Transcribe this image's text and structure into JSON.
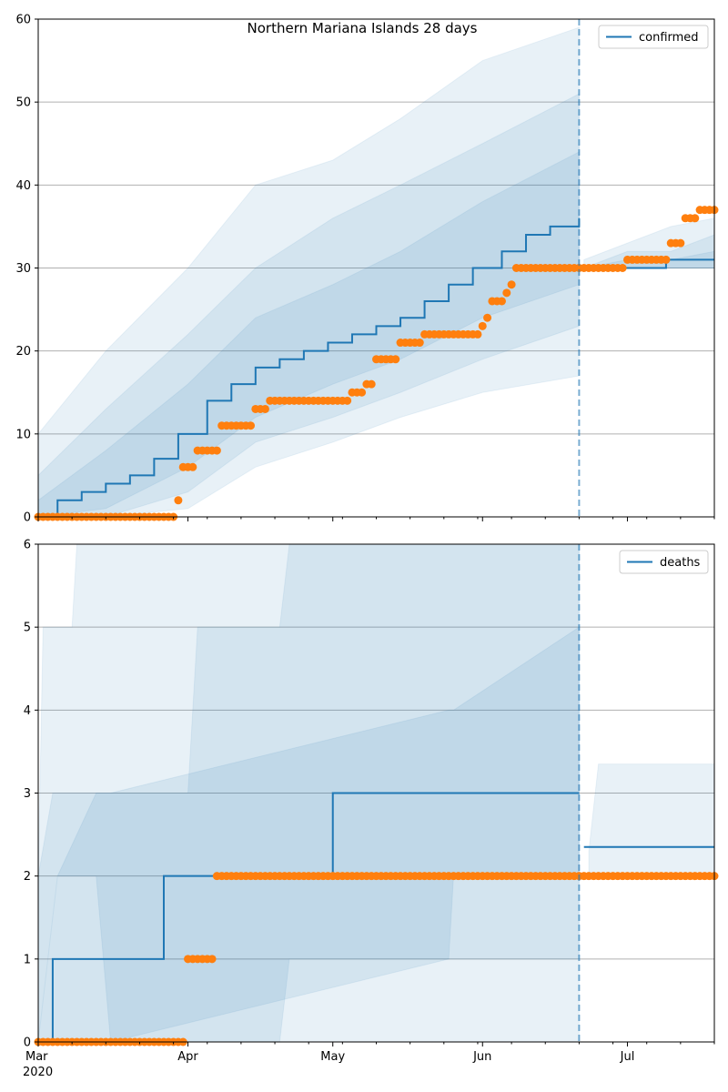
{
  "chart_data": [
    {
      "type": "line",
      "title": "Northern Mariana Islands 28 days",
      "xlabel": "",
      "ylabel": "",
      "ylim": [
        0,
        60
      ],
      "yticks": [
        0,
        10,
        20,
        30,
        40,
        50,
        60
      ],
      "xlim": [
        "2020-03-01",
        "2020-07-19"
      ],
      "xticks": [
        {
          "date": "2020-03-01",
          "label": "Mar",
          "sublabel": "2020"
        },
        {
          "date": "2020-04-01",
          "label": "Apr",
          "sublabel": ""
        },
        {
          "date": "2020-05-01",
          "label": "May",
          "sublabel": ""
        },
        {
          "date": "2020-06-01",
          "label": "Jun",
          "sublabel": ""
        },
        {
          "date": "2020-07-01",
          "label": "Jul",
          "sublabel": ""
        }
      ],
      "grid": "horizontal",
      "legend": {
        "position": "top-right",
        "entries": [
          "confirmed"
        ]
      },
      "forecast_start": "2020-06-21",
      "series_fit": {
        "name": "confirmed",
        "color": "#1f77b4",
        "x": [
          "2020-03-01",
          "2020-03-05",
          "2020-03-10",
          "2020-03-15",
          "2020-03-20",
          "2020-03-25",
          "2020-03-30",
          "2020-04-05",
          "2020-04-10",
          "2020-04-15",
          "2020-04-20",
          "2020-04-25",
          "2020-04-30",
          "2020-05-05",
          "2020-05-10",
          "2020-05-15",
          "2020-05-20",
          "2020-05-25",
          "2020-05-30",
          "2020-06-05",
          "2020-06-10",
          "2020-06-15",
          "2020-06-21"
        ],
        "y": [
          0,
          2,
          3,
          4,
          5,
          7,
          10,
          14,
          16,
          18,
          19,
          20,
          21,
          22,
          23,
          24,
          26,
          28,
          30,
          32,
          34,
          35,
          36
        ]
      },
      "series_forecast": {
        "x": [
          "2020-06-22",
          "2020-06-30",
          "2020-07-01",
          "2020-07-08",
          "2020-07-09",
          "2020-07-19"
        ],
        "y": [
          30,
          30,
          30,
          30,
          31,
          31
        ]
      },
      "bands_fit": [
        {
          "x": [
            "2020-03-01",
            "2020-03-15",
            "2020-04-01",
            "2020-04-15",
            "2020-05-01",
            "2020-05-15",
            "2020-06-01",
            "2020-06-21"
          ],
          "lower": [
            0,
            0,
            1,
            6,
            9,
            12,
            15,
            17
          ],
          "upper": [
            10,
            20,
            30,
            40,
            43,
            48,
            55,
            59
          ]
        },
        {
          "x": [
            "2020-03-01",
            "2020-03-15",
            "2020-04-01",
            "2020-04-15",
            "2020-05-01",
            "2020-05-15",
            "2020-06-01",
            "2020-06-21"
          ],
          "lower": [
            0,
            0,
            3,
            9,
            12,
            15,
            19,
            23
          ],
          "upper": [
            5,
            13,
            22,
            30,
            36,
            40,
            45,
            51
          ]
        },
        {
          "x": [
            "2020-03-01",
            "2020-03-15",
            "2020-04-01",
            "2020-04-15",
            "2020-05-01",
            "2020-05-15",
            "2020-06-01",
            "2020-06-21"
          ],
          "lower": [
            0,
            1,
            6,
            12,
            16,
            19,
            24,
            28
          ],
          "upper": [
            2,
            8,
            16,
            24,
            28,
            32,
            38,
            44
          ]
        }
      ],
      "bands_forecast": [
        {
          "x": [
            "2020-06-22",
            "2020-07-01",
            "2020-07-10",
            "2020-07-19"
          ],
          "lower": [
            30,
            30,
            30,
            30
          ],
          "upper": [
            31,
            33,
            35,
            36
          ]
        },
        {
          "x": [
            "2020-06-22",
            "2020-07-01",
            "2020-07-10",
            "2020-07-19"
          ],
          "lower": [
            30,
            30,
            30,
            30
          ],
          "upper": [
            30,
            32,
            32,
            34
          ]
        },
        {
          "x": [
            "2020-06-22",
            "2020-07-01",
            "2020-07-10",
            "2020-07-19"
          ],
          "lower": [
            30,
            30,
            30,
            30
          ],
          "upper": [
            30,
            31,
            31,
            32
          ]
        }
      ],
      "observed": {
        "color": "#ff7f0e",
        "segments": [
          {
            "from": "2020-03-01",
            "to": "2020-03-29",
            "value": 0
          },
          {
            "from": "2020-03-30",
            "to": "2020-03-30",
            "value": 2
          },
          {
            "from": "2020-03-31",
            "to": "2020-04-02",
            "value": 6
          },
          {
            "from": "2020-04-03",
            "to": "2020-04-07",
            "value": 8
          },
          {
            "from": "2020-04-08",
            "to": "2020-04-14",
            "value": 11
          },
          {
            "from": "2020-04-15",
            "to": "2020-04-17",
            "value": 13
          },
          {
            "from": "2020-04-18",
            "to": "2020-05-04",
            "value": 14
          },
          {
            "from": "2020-05-05",
            "to": "2020-05-07",
            "value": 15
          },
          {
            "from": "2020-05-08",
            "to": "2020-05-09",
            "value": 16
          },
          {
            "from": "2020-05-10",
            "to": "2020-05-14",
            "value": 19
          },
          {
            "from": "2020-05-15",
            "to": "2020-05-19",
            "value": 21
          },
          {
            "from": "2020-05-20",
            "to": "2020-05-31",
            "value": 22
          },
          {
            "from": "2020-06-01",
            "to": "2020-06-01",
            "value": 23
          },
          {
            "from": "2020-06-02",
            "to": "2020-06-02",
            "value": 24
          },
          {
            "from": "2020-06-03",
            "to": "2020-06-05",
            "value": 26
          },
          {
            "from": "2020-06-06",
            "to": "2020-06-06",
            "value": 27
          },
          {
            "from": "2020-06-07",
            "to": "2020-06-07",
            "value": 28
          },
          {
            "from": "2020-06-08",
            "to": "2020-06-30",
            "value": 30
          },
          {
            "from": "2020-07-01",
            "to": "2020-07-09",
            "value": 31
          },
          {
            "from": "2020-07-10",
            "to": "2020-07-12",
            "value": 33
          },
          {
            "from": "2020-07-13",
            "to": "2020-07-15",
            "value": 36
          },
          {
            "from": "2020-07-16",
            "to": "2020-07-19",
            "value": 37
          }
        ]
      }
    },
    {
      "type": "line",
      "title": "",
      "xlabel": "",
      "ylabel": "",
      "ylim": [
        0,
        6
      ],
      "yticks": [
        0,
        1,
        2,
        3,
        4,
        5,
        6
      ],
      "xlim": [
        "2020-03-01",
        "2020-07-19"
      ],
      "xticks": [
        {
          "date": "2020-03-01",
          "label": "Mar",
          "sublabel": "2020"
        },
        {
          "date": "2020-04-01",
          "label": "Apr",
          "sublabel": ""
        },
        {
          "date": "2020-05-01",
          "label": "May",
          "sublabel": ""
        },
        {
          "date": "2020-06-01",
          "label": "Jun",
          "sublabel": ""
        },
        {
          "date": "2020-07-01",
          "label": "Jul",
          "sublabel": ""
        }
      ],
      "grid": "horizontal",
      "legend": {
        "position": "top-right",
        "entries": [
          "deaths"
        ]
      },
      "forecast_start": "2020-06-21",
      "series_fit": {
        "name": "deaths",
        "color": "#1f77b4",
        "x": [
          "2020-03-01",
          "2020-03-03",
          "2020-03-03",
          "2020-03-04",
          "2020-03-26",
          "2020-03-27",
          "2020-04-30",
          "2020-05-01",
          "2020-06-21"
        ],
        "y": [
          0,
          0,
          0,
          1,
          1,
          2,
          2,
          3,
          3
        ]
      },
      "series_forecast": {
        "x": [
          "2020-06-22",
          "2020-07-19"
        ],
        "y": [
          2.35,
          2.35
        ]
      },
      "bands_fit": [
        {
          "x": [
            "2020-03-01",
            "2020-03-02",
            "2020-03-08",
            "2020-03-09",
            "2020-06-21"
          ],
          "lower": [
            0,
            0,
            0,
            0,
            0
          ],
          "upper": [
            2,
            5,
            5,
            6,
            6
          ]
        },
        {
          "x": [
            "2020-03-01",
            "2020-03-04",
            "2020-04-01",
            "2020-04-03",
            "2020-04-20",
            "2020-04-22",
            "2020-06-21"
          ],
          "lower": [
            0,
            0,
            0,
            0,
            0,
            1,
            1
          ],
          "upper": [
            2,
            3,
            3,
            5,
            5,
            6,
            6
          ]
        },
        {
          "x": [
            "2020-03-01",
            "2020-03-05",
            "2020-03-13",
            "2020-03-16",
            "2020-05-25",
            "2020-05-26",
            "2020-06-21"
          ],
          "lower": [
            0,
            2,
            2,
            0,
            1,
            2,
            2
          ],
          "upper": [
            0,
            2,
            3,
            3,
            4,
            4,
            5
          ]
        }
      ],
      "bands_forecast": [
        {
          "x": [
            "2020-06-23",
            "2020-06-25",
            "2020-07-19"
          ],
          "lower": [
            2,
            2,
            2
          ],
          "upper": [
            2.3,
            3.35,
            3.35
          ]
        }
      ],
      "observed": {
        "color": "#ff7f0e",
        "segments": [
          {
            "from": "2020-03-01",
            "to": "2020-03-31",
            "value": 0
          },
          {
            "from": "2020-04-01",
            "to": "2020-04-06",
            "value": 1
          },
          {
            "from": "2020-04-07",
            "to": "2020-07-19",
            "value": 2
          }
        ]
      }
    }
  ]
}
